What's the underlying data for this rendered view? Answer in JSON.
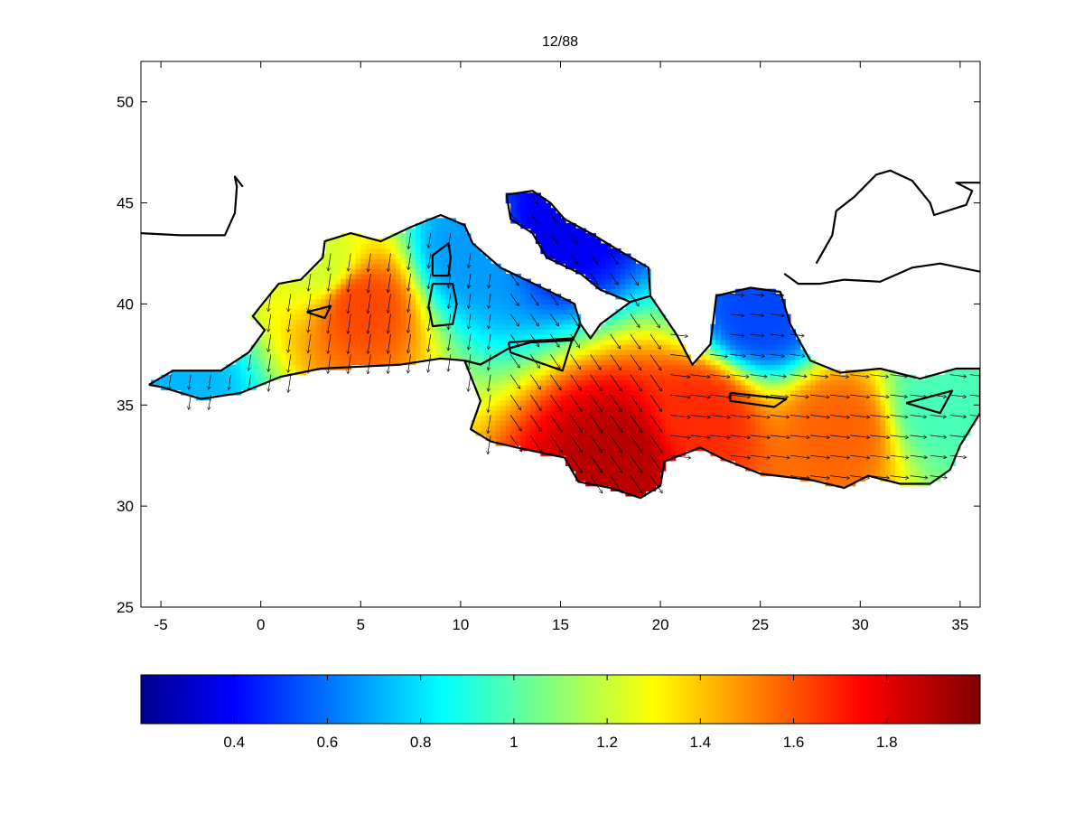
{
  "title": "12/88",
  "chart_data": {
    "type": "heatmap",
    "title": "12/88",
    "xlabel": "",
    "ylabel": "",
    "xlim": [
      -6,
      36
    ],
    "ylim": [
      25,
      52
    ],
    "xticks": [
      "-5",
      "0",
      "5",
      "10",
      "15",
      "20",
      "25",
      "30",
      "35"
    ],
    "yticks": [
      "25",
      "30",
      "35",
      "40",
      "45",
      "50"
    ],
    "grid": false,
    "colormap": "jet",
    "colorbar": {
      "orientation": "horizontal",
      "placement": "bottom",
      "range": [
        0.2,
        2.0
      ],
      "ticks": [
        "0.4",
        "0.6",
        "0.8",
        "1",
        "1.2",
        "1.4",
        "1.6",
        "1.8"
      ]
    },
    "field_samples": [
      {
        "lon": -4.5,
        "lat": 36.0,
        "value": 0.75
      },
      {
        "lon": 3.0,
        "lat": 42.0,
        "value": 1.25
      },
      {
        "lon": 5.0,
        "lat": 40.0,
        "value": 1.65
      },
      {
        "lon": 10.5,
        "lat": 42.5,
        "value": 0.7
      },
      {
        "lon": 15.0,
        "lat": 44.0,
        "value": 0.4
      },
      {
        "lon": 18.0,
        "lat": 32.5,
        "value": 1.9
      },
      {
        "lon": 22.0,
        "lat": 34.5,
        "value": 1.7
      },
      {
        "lon": 25.0,
        "lat": 39.5,
        "value": 0.55
      },
      {
        "lon": 29.0,
        "lat": 33.8,
        "value": 1.6
      },
      {
        "lon": 34.0,
        "lat": 35.0,
        "value": 1.0
      }
    ],
    "vectors": "wind direction arrows over sea grid",
    "colors": {
      "jet": [
        "#00008f",
        "#0000ff",
        "#00ffff",
        "#ffff00",
        "#ff0000",
        "#800000"
      ],
      "coastline": "#000000"
    }
  }
}
